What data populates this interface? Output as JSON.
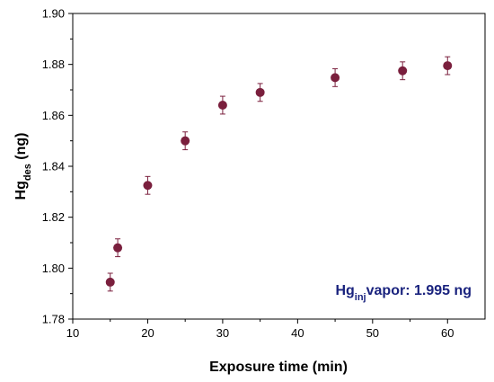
{
  "chart_data": {
    "type": "scatter",
    "xlabel": "Exposure time (min)",
    "ylabel": {
      "main": "Hg",
      "sub": "des",
      "suffix": " (ng)"
    },
    "xlim": [
      10,
      65
    ],
    "ylim": [
      1.78,
      1.9
    ],
    "x_ticks": [
      10,
      20,
      30,
      40,
      50,
      60
    ],
    "y_ticks": [
      "1.78",
      "1.80",
      "1.82",
      "1.84",
      "1.86",
      "1.88",
      "1.90"
    ],
    "grid": false,
    "series": [
      {
        "color": "#7a1f3d",
        "points": [
          {
            "x": 15,
            "y": 1.7945,
            "err": 0.0035
          },
          {
            "x": 16,
            "y": 1.808,
            "err": 0.0035
          },
          {
            "x": 20,
            "y": 1.8325,
            "err": 0.0035
          },
          {
            "x": 25,
            "y": 1.85,
            "err": 0.0035
          },
          {
            "x": 30,
            "y": 1.864,
            "err": 0.0035
          },
          {
            "x": 35,
            "y": 1.869,
            "err": 0.0035
          },
          {
            "x": 45,
            "y": 1.8748,
            "err": 0.0035
          },
          {
            "x": 54,
            "y": 1.8775,
            "err": 0.0035
          },
          {
            "x": 60,
            "y": 1.8795,
            "err": 0.0035
          }
        ]
      }
    ],
    "annotation": {
      "main": "Hg",
      "sub": "inj",
      "suffix": "vapor: 1.995 ng",
      "color": "#1a237e"
    }
  }
}
